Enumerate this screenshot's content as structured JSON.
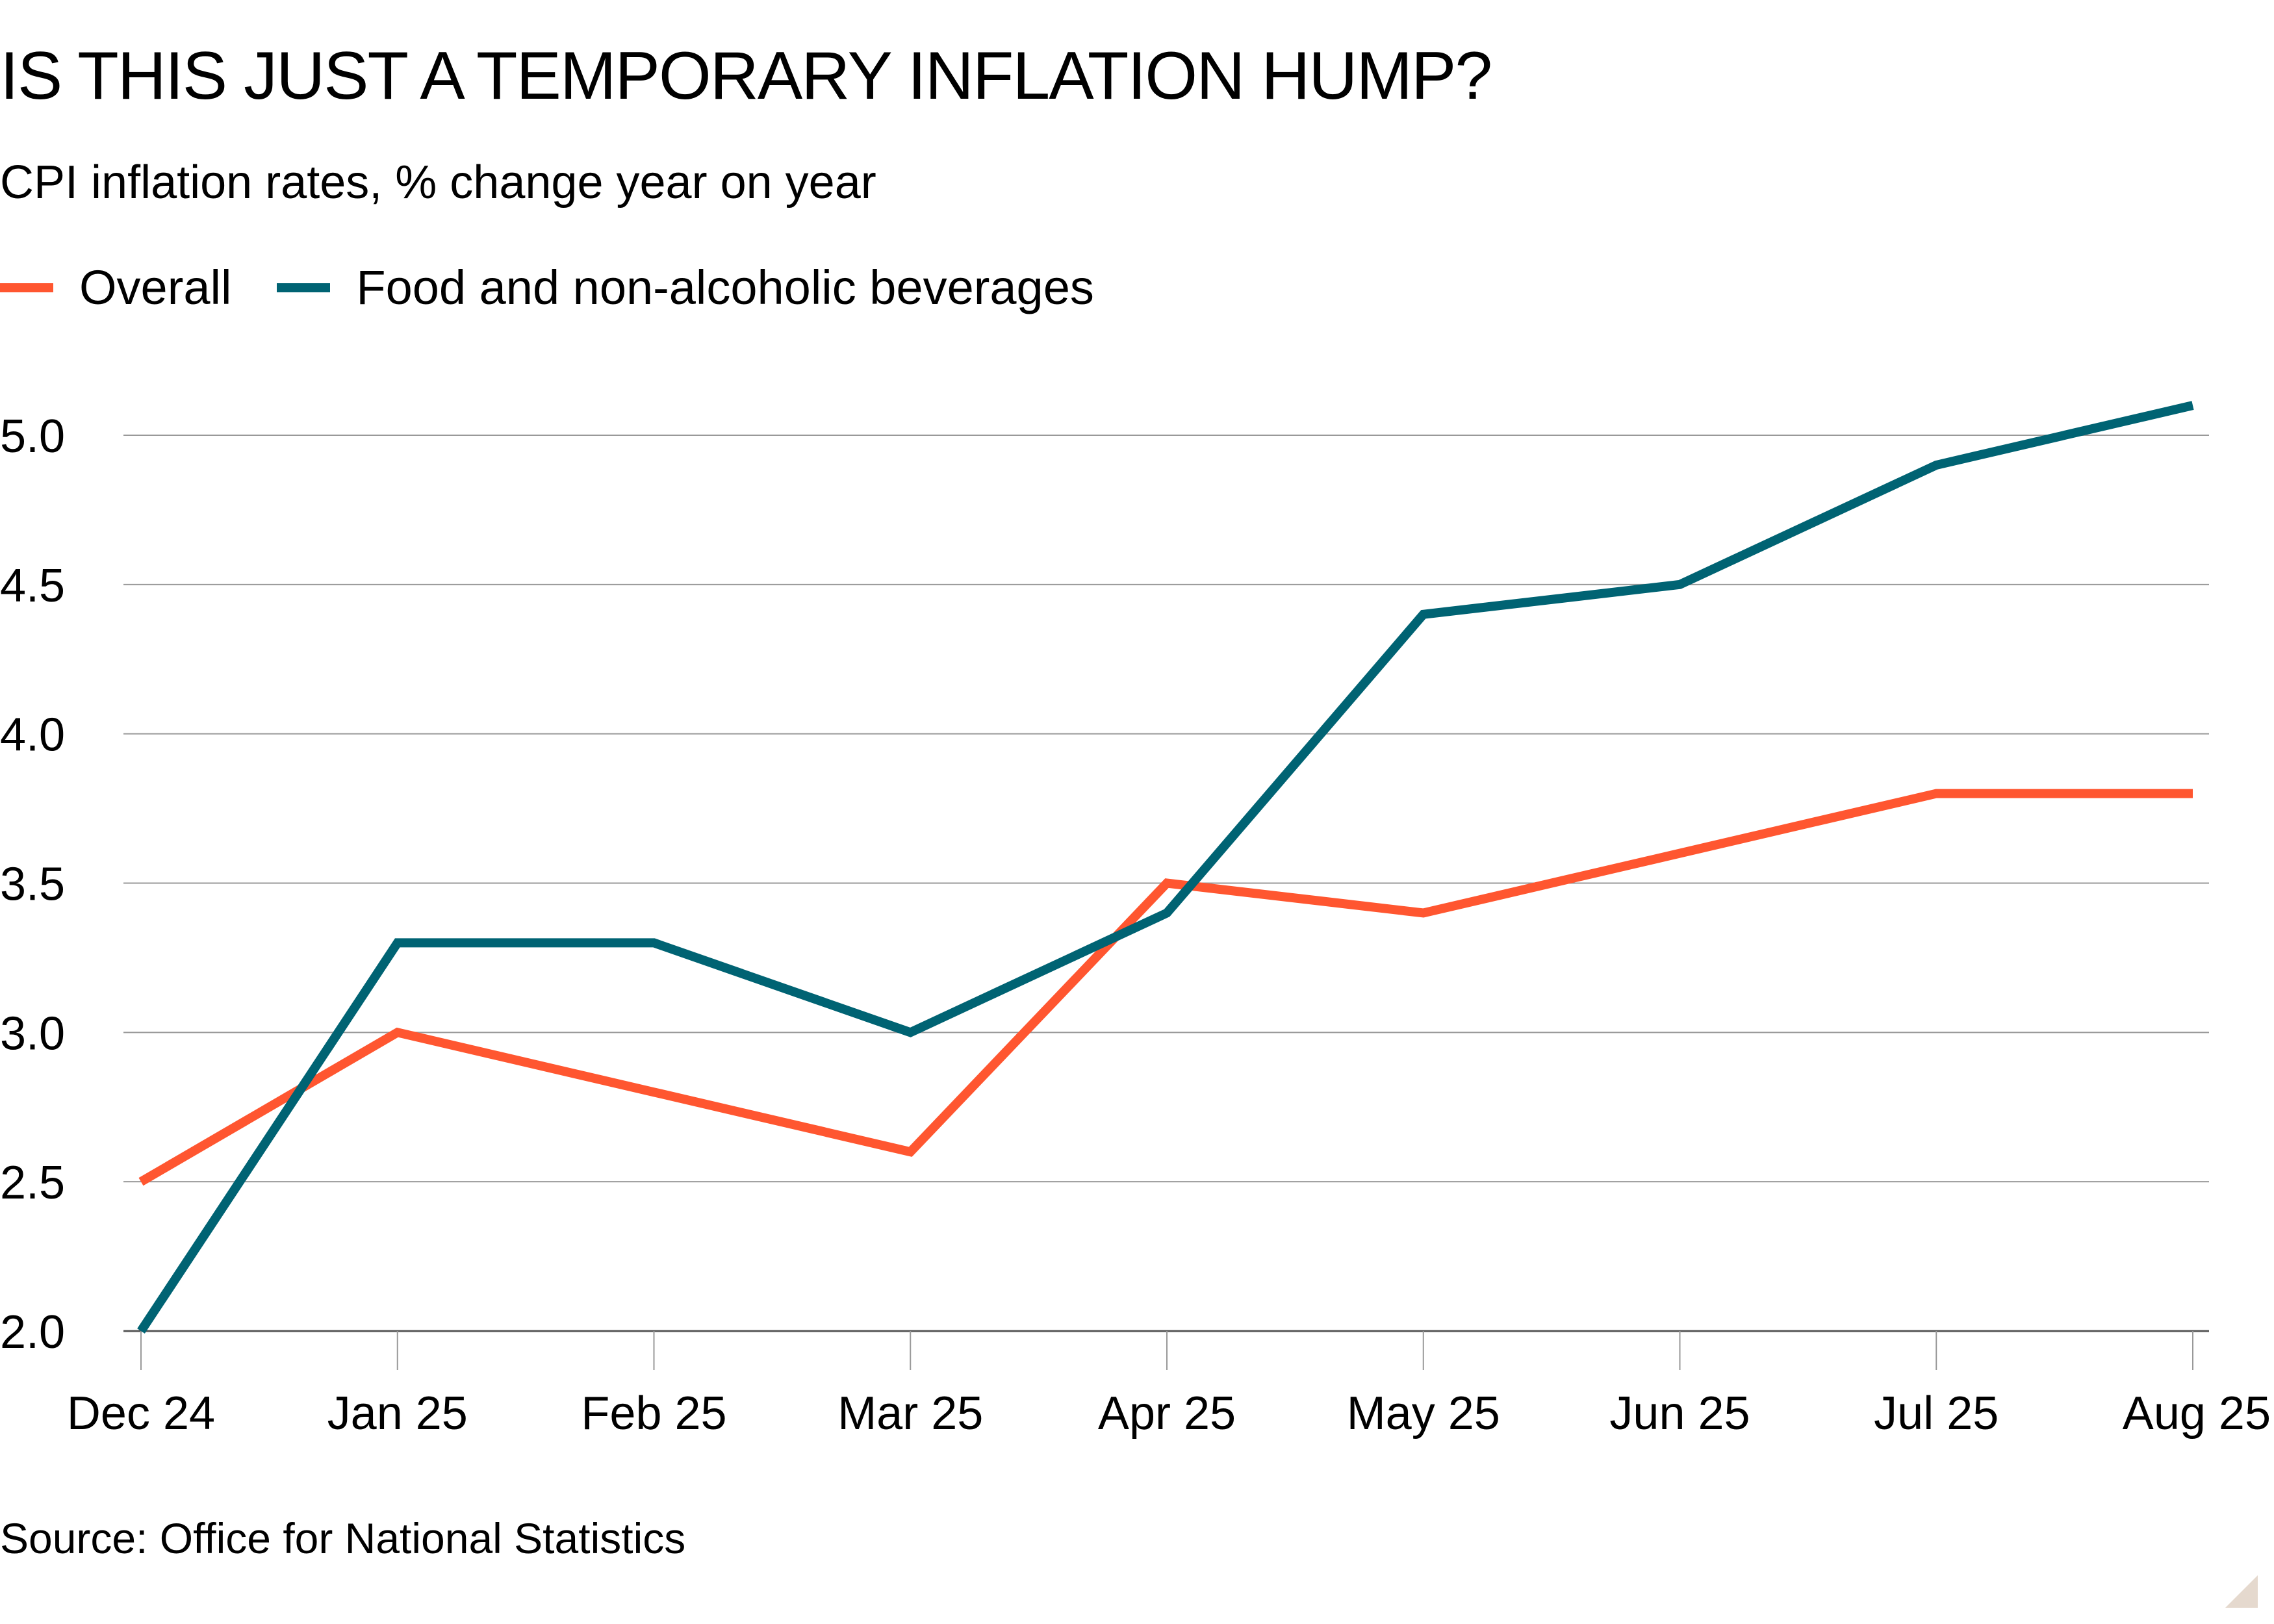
{
  "chart_data": {
    "type": "line",
    "title": "IS THIS JUST A TEMPORARY INFLATION HUMP?",
    "subtitle": "CPI inflation rates, % change year on year",
    "source": "Source: Office for National Statistics",
    "xlabel": "",
    "ylabel": "",
    "categories": [
      "Dec 24",
      "Jan 25",
      "Feb 25",
      "Mar 25",
      "Apr 25",
      "May 25",
      "Jun 25",
      "Jul 25",
      "Aug 25"
    ],
    "yticks": [
      "2.0",
      "2.5",
      "3.0",
      "3.5",
      "4.0",
      "4.5",
      "5.0"
    ],
    "ylim": [
      2.0,
      5.0
    ],
    "grid": true,
    "legend_placement": "top-left",
    "series": [
      {
        "name": "Overall",
        "color": "#ff5630",
        "values": [
          2.5,
          3.0,
          2.8,
          2.6,
          3.5,
          3.4,
          3.6,
          3.8,
          3.8
        ]
      },
      {
        "name": "Food and non-alcoholic beverages",
        "color": "#006373",
        "values": [
          2.0,
          3.3,
          3.3,
          3.0,
          3.4,
          4.4,
          4.5,
          4.9,
          5.1
        ]
      }
    ]
  }
}
